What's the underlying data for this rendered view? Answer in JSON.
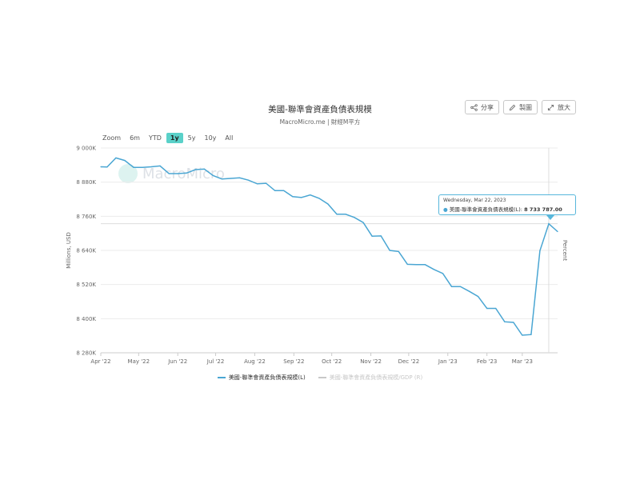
{
  "header": {
    "title": "美國-聯準會資產負債表規模",
    "subtitle": "MacroMicro.me | 財經M平方"
  },
  "toolbar": {
    "share_label": "分享",
    "draw_label": "製圖",
    "enlarge_label": "放大"
  },
  "zoom": {
    "label": "Zoom",
    "options": [
      "6m",
      "YTD",
      "1y",
      "5y",
      "10y",
      "All"
    ],
    "active": "1y"
  },
  "watermark": "MacroMicro",
  "tooltip": {
    "date": "Wednesday, Mar 22, 2023",
    "series": "美國-聯準會資產負債表規模(L):",
    "value": "8 733 787.00"
  },
  "colors": {
    "series_primary": "#4aa6d3",
    "series_secondary": "#c8c8c8",
    "accent": "#5ad1c9"
  },
  "chart_data": {
    "type": "line",
    "ylabel": "Millions, USD",
    "ylabel_right": "Percent",
    "ylim": [
      8280000,
      9000000
    ],
    "yticks": [
      8280000,
      8400000,
      8520000,
      8640000,
      8760000,
      8880000,
      9000000
    ],
    "ytick_labels": [
      "8 280K",
      "8 400K",
      "8 520K",
      "8 640K",
      "8 760K",
      "8 880K",
      "9 000K"
    ],
    "xtick_labels": [
      "Apr '22",
      "May '22",
      "Jun '22",
      "Jul '22",
      "Aug '22",
      "Sep '22",
      "Oct '22",
      "Nov '22",
      "Dec '22",
      "Jan '23",
      "Feb '23",
      "Mar '23"
    ],
    "xtick_dates": [
      "2022-04-01",
      "2022-05-01",
      "2022-06-01",
      "2022-07-01",
      "2022-08-01",
      "2022-09-01",
      "2022-10-01",
      "2022-11-01",
      "2022-12-01",
      "2023-01-01",
      "2023-02-01",
      "2023-03-01"
    ],
    "xlim": [
      "2022-04-01",
      "2023-03-29"
    ],
    "grid": true,
    "legend_position": "bottom",
    "series": [
      {
        "name": "美國-聯準會資產負債表規模(L)",
        "points": [
          [
            "2022-04-01",
            8934000
          ],
          [
            "2022-04-06",
            8933000
          ],
          [
            "2022-04-13",
            8965000
          ],
          [
            "2022-04-20",
            8956000
          ],
          [
            "2022-04-27",
            8932000
          ],
          [
            "2022-05-04",
            8932000
          ],
          [
            "2022-05-11",
            8934000
          ],
          [
            "2022-05-18",
            8937000
          ],
          [
            "2022-05-25",
            8910000
          ],
          [
            "2022-06-01",
            8910000
          ],
          [
            "2022-06-08",
            8912000
          ],
          [
            "2022-06-15",
            8924000
          ],
          [
            "2022-06-22",
            8926000
          ],
          [
            "2022-06-29",
            8903000
          ],
          [
            "2022-07-06",
            8891000
          ],
          [
            "2022-07-13",
            8893000
          ],
          [
            "2022-07-20",
            8895000
          ],
          [
            "2022-07-27",
            8887000
          ],
          [
            "2022-08-03",
            8874000
          ],
          [
            "2022-08-10",
            8876000
          ],
          [
            "2022-08-17",
            8850000
          ],
          [
            "2022-08-24",
            8850000
          ],
          [
            "2022-08-31",
            8829000
          ],
          [
            "2022-09-07",
            8826000
          ],
          [
            "2022-09-14",
            8835000
          ],
          [
            "2022-09-21",
            8823000
          ],
          [
            "2022-09-28",
            8803000
          ],
          [
            "2022-10-05",
            8767000
          ],
          [
            "2022-10-12",
            8767000
          ],
          [
            "2022-10-19",
            8756000
          ],
          [
            "2022-10-26",
            8738000
          ],
          [
            "2022-11-02",
            8690000
          ],
          [
            "2022-11-09",
            8691000
          ],
          [
            "2022-11-16",
            8640000
          ],
          [
            "2022-11-23",
            8636000
          ],
          [
            "2022-11-30",
            8591000
          ],
          [
            "2022-12-07",
            8590000
          ],
          [
            "2022-12-14",
            8590000
          ],
          [
            "2022-12-21",
            8573000
          ],
          [
            "2022-12-28",
            8559000
          ],
          [
            "2023-01-04",
            8513000
          ],
          [
            "2023-01-11",
            8513000
          ],
          [
            "2023-01-18",
            8496000
          ],
          [
            "2023-01-25",
            8478000
          ],
          [
            "2023-02-01",
            8436000
          ],
          [
            "2023-02-08",
            8436000
          ],
          [
            "2023-02-15",
            8389000
          ],
          [
            "2023-02-22",
            8387000
          ],
          [
            "2023-03-01",
            8342000
          ],
          [
            "2023-03-08",
            8344000
          ],
          [
            "2023-03-15",
            8639000
          ],
          [
            "2023-03-22",
            8733787
          ],
          [
            "2023-03-29",
            8706000
          ]
        ]
      },
      {
        "name": "美國-聯準會資產負債表規模/GDP (R)",
        "points": []
      }
    ]
  }
}
